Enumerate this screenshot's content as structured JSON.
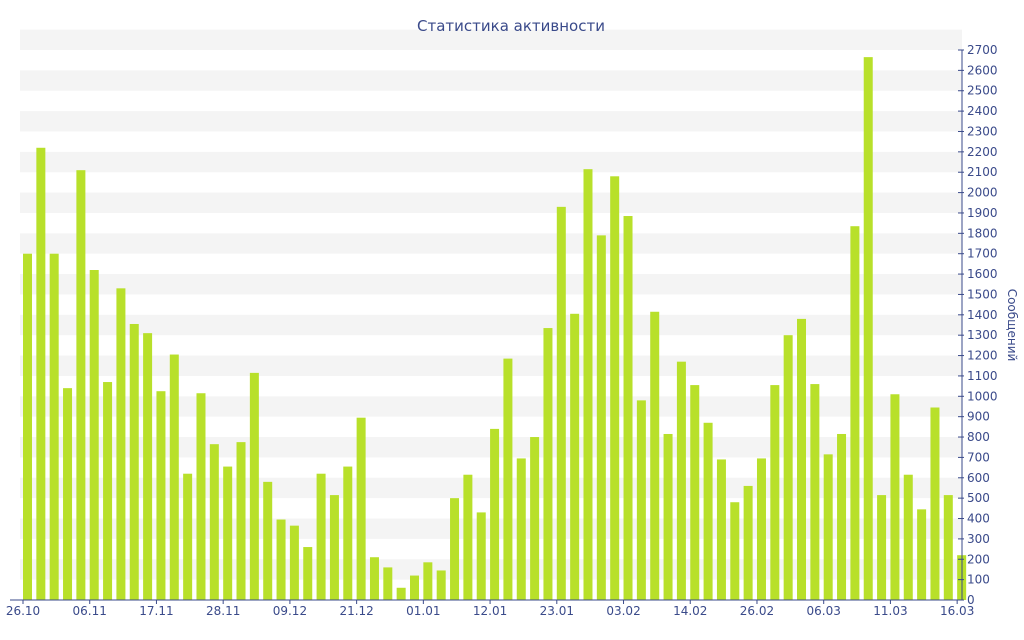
{
  "chart_data": {
    "type": "bar",
    "title": "Статистика активности",
    "xlabel": "",
    "ylabel": "Сообщений",
    "ylim": [
      0,
      2700
    ],
    "y_ticks": [
      0,
      100,
      200,
      300,
      400,
      500,
      600,
      700,
      800,
      900,
      1000,
      1100,
      1200,
      1300,
      1400,
      1500,
      1600,
      1700,
      1800,
      1900,
      2000,
      2100,
      2200,
      2300,
      2400,
      2500,
      2600,
      2700
    ],
    "x_tick_labels": [
      {
        "label": "26.10",
        "index": 0
      },
      {
        "label": "06.11",
        "index": 5
      },
      {
        "label": "17.11",
        "index": 10
      },
      {
        "label": "28.11",
        "index": 15
      },
      {
        "label": "09.12",
        "index": 20
      },
      {
        "label": "21.12",
        "index": 25
      },
      {
        "label": "01.01",
        "index": 30
      },
      {
        "label": "12.01",
        "index": 35
      },
      {
        "label": "23.01",
        "index": 40
      },
      {
        "label": "03.02",
        "index": 45
      },
      {
        "label": "14.02",
        "index": 50
      },
      {
        "label": "26.02",
        "index": 55
      },
      {
        "label": "06.03",
        "index": 60
      },
      {
        "label": "11.03",
        "index": 65
      },
      {
        "label": "16.03",
        "index": 70
      }
    ],
    "values": [
      1700,
      2220,
      1700,
      1040,
      2110,
      1620,
      1070,
      1530,
      1355,
      1310,
      1025,
      1205,
      620,
      1015,
      765,
      655,
      775,
      1115,
      580,
      395,
      365,
      260,
      620,
      515,
      655,
      895,
      210,
      160,
      60,
      120,
      185,
      145,
      500,
      615,
      430,
      840,
      1185,
      695,
      800,
      1335,
      1930,
      1405,
      2115,
      1790,
      2080,
      1885,
      980,
      1415,
      815,
      1170,
      1055,
      870,
      690,
      480,
      560,
      695,
      1055,
      1300,
      1380,
      1060,
      715,
      815,
      1835,
      2665,
      515,
      1010,
      615,
      445,
      945,
      515,
      220
    ],
    "bar_color": "#b8e02a",
    "band_color": "#f4f4f4",
    "axis_color": "#3a4a8a",
    "grid": "alternating bands",
    "y_axis_position": "right"
  }
}
